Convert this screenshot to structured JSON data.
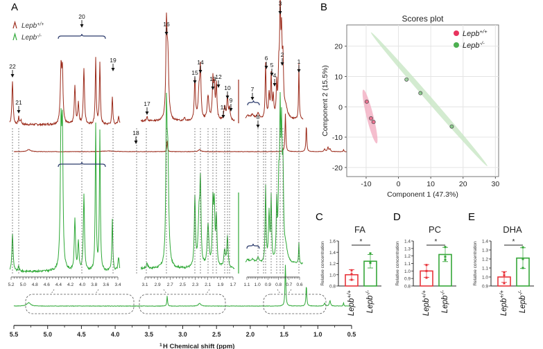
{
  "panels": {
    "A": "A",
    "B": "B",
    "C": "C",
    "D": "D",
    "E": "E"
  },
  "colors": {
    "wt": "#9b2a1a",
    "ko": "#2ea836",
    "wt_point": "#e8335e",
    "ko_point": "#4caf50",
    "wt_ellipse": "#f2a8bd",
    "ko_ellipse": "#c8e6c4",
    "bar_wt": "#e8333a",
    "bar_ko": "#35a638",
    "brace": "#2b3a6b"
  },
  "chart_data": [
    {
      "id": "nmr",
      "type": "line",
      "title": "",
      "xlabel_sup": "1",
      "xlabel": "H Chemical shift (ppm)",
      "xlim": [
        5.5,
        0.5
      ],
      "xticks": [
        "5.5",
        "5.0",
        "4.5",
        "4.0",
        "3.5",
        "3.0",
        "2.5",
        "2.0",
        "1.5",
        "1.0",
        "0.5"
      ],
      "legend": [
        {
          "name": "Lepb",
          "sup": "+/+",
          "color": "#9b2a1a"
        },
        {
          "name": "Lepb",
          "sup": "-/-",
          "color": "#2ea836"
        }
      ],
      "inset_ticks": {
        "left": [
          "5.2",
          "5.0",
          "4.8",
          "4.6",
          "4.4",
          "4.2",
          "4.0",
          "3.8",
          "3.6",
          "3.4"
        ],
        "mid": [
          "3.1",
          "2.9",
          "2.7",
          "2.5",
          "2.3",
          "2.1",
          "1.9",
          "1.7"
        ],
        "right": [
          "1.1",
          "1.0",
          "0.9",
          "0.8",
          "0.7",
          "0.6"
        ]
      },
      "peak_labels": [
        "1",
        "2",
        "3",
        "4",
        "5",
        "6",
        "7",
        "8",
        "9",
        "10",
        "11",
        "12",
        "13",
        "14",
        "15",
        "16",
        "17",
        "18",
        "19",
        "20",
        "21",
        "22"
      ],
      "series": [
        {
          "name": "Lepb+/+ full",
          "peaks_ppm": [
            5.28,
            3.23,
            2.75,
            1.48,
            1.17,
            0.88,
            0.83
          ]
        },
        {
          "name": "Lepb-/- full",
          "peaks_ppm": [
            5.28,
            3.23,
            2.75,
            1.48,
            1.17,
            0.88,
            0.83
          ]
        }
      ]
    },
    {
      "id": "scores",
      "type": "scatter",
      "title": "Scores plot",
      "xlabel": "Component 1 (47.3%)",
      "ylabel": "Component 2 (15.5%)",
      "xlim": [
        -16,
        31
      ],
      "ylim": [
        -23,
        27
      ],
      "xticks": [
        "-10",
        "0",
        "10",
        "20",
        "30"
      ],
      "yticks": [
        "-20",
        "-10",
        "0",
        "10",
        "20"
      ],
      "grid": true,
      "legend_position": "top-right",
      "series": [
        {
          "name": "Lepb",
          "sup": "+/+",
          "points": [
            [
              -9.8,
              1.7
            ],
            [
              -8.5,
              -3.8
            ],
            [
              -7.7,
              -5.0
            ]
          ]
        },
        {
          "name": "Lepb",
          "sup": "-/-",
          "points": [
            [
              2.5,
              9.0
            ],
            [
              6.8,
              4.5
            ],
            [
              16.5,
              -6.5
            ]
          ]
        }
      ]
    },
    {
      "id": "FA",
      "type": "bar",
      "panel": "C",
      "title": "FA",
      "ylabel": "Relative concentration",
      "ylim": [
        0.8,
        1.6
      ],
      "yticks": [
        "0.8",
        "1.0",
        "1.2",
        "1.4",
        "1.6"
      ],
      "categories": [
        {
          "name": "Lepb",
          "sup": "+/+"
        },
        {
          "name": "Lepb",
          "sup": "-/-"
        }
      ],
      "values": [
        1.0,
        1.24
      ],
      "errors": [
        0.09,
        0.12
      ],
      "points": [
        [
          0.91,
          1.01,
          1.08
        ],
        [
          1.21,
          1.22,
          1.38
        ]
      ],
      "significance": "*"
    },
    {
      "id": "PC",
      "type": "bar",
      "panel": "D",
      "title": "PC",
      "ylabel": "Relative concentration",
      "ylim": [
        0.8,
        1.4
      ],
      "yticks": [
        "0.8",
        "0.9",
        "1.0",
        "1.1",
        "1.2",
        "1.3",
        "1.4"
      ],
      "categories": [
        {
          "name": "Lepb",
          "sup": "+/+"
        },
        {
          "name": "Lepb",
          "sup": "-/-"
        }
      ],
      "values": [
        1.0,
        1.22
      ],
      "errors": [
        0.085,
        0.095
      ],
      "points": [
        [
          0.91,
          1.0,
          1.08
        ],
        [
          1.15,
          1.19,
          1.32
        ]
      ],
      "significance": "*"
    },
    {
      "id": "DHA",
      "type": "bar",
      "panel": "E",
      "title": "DHA",
      "ylabel": "Relative concentration",
      "ylim": [
        0.9,
        1.4
      ],
      "yticks": [
        "0.9",
        "1.0",
        "1.1",
        "1.2",
        "1.3",
        "1.4"
      ],
      "categories": [
        {
          "name": "Lepb",
          "sup": "+/+"
        },
        {
          "name": "Lepb",
          "sup": "-/-"
        }
      ],
      "values": [
        1.0,
        1.21
      ],
      "errors": [
        0.06,
        0.115
      ],
      "points": [
        [
          0.93,
          1.02,
          1.05
        ],
        [
          1.1,
          1.2,
          1.33
        ]
      ],
      "significance": "*"
    }
  ]
}
